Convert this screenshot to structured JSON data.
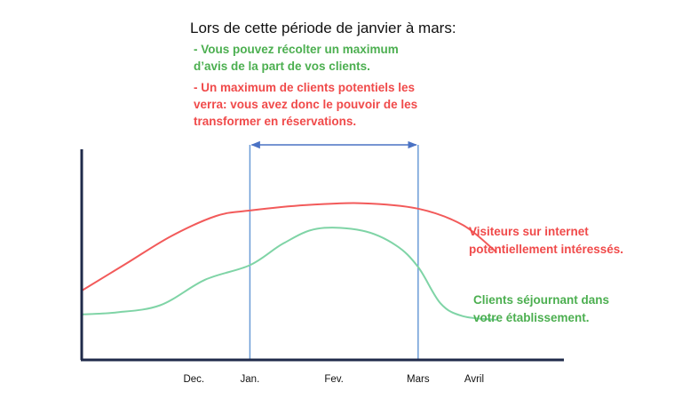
{
  "title": "Lors de cette période de janvier à mars:",
  "notes": {
    "green_lines": [
      "- Vous pouvez récolter un maximum",
      "d’avis de la part de vos clients."
    ],
    "red_lines": [
      "- Un maximum de clients potentiels les",
      "verra: vous avez donc le pouvoir de les",
      "transformer en réservations."
    ]
  },
  "colors": {
    "visitors": "#f25a5a",
    "clients": "#7fd4a6",
    "period": "#6b9bd6",
    "axis": "#1f2a4a"
  },
  "chart_data": {
    "type": "line",
    "categories": [
      "Dec.",
      "Jan.",
      "Fev.",
      "Mars",
      "Avril"
    ],
    "x": [
      0.5,
      1,
      1.75,
      2.5,
      3
    ],
    "xlim": [
      -0.5,
      3.8
    ],
    "ylim": [
      0,
      100
    ],
    "highlight_period": {
      "from": 1,
      "to": 2.5
    },
    "series": [
      {
        "name": "Visiteurs sur internet potentiellement intéressés.",
        "label_lines": [
          "Visiteurs sur internet",
          "potentiellement intéressés."
        ],
        "x": [
          -0.5,
          -0.1,
          0.3,
          0.7,
          1.0,
          1.5,
          2.0,
          2.5,
          2.9,
          3.2
        ],
        "values": [
          38,
          53,
          68,
          79,
          82,
          85,
          86,
          83,
          74,
          59
        ]
      },
      {
        "name": "Clients séjournant dans votre établissement.",
        "label_lines": [
          "Clients séjournant dans",
          "votre établissement."
        ],
        "x": [
          -0.5,
          -0.2,
          0.2,
          0.6,
          1.0,
          1.3,
          1.6,
          2.0,
          2.3,
          2.5,
          2.7,
          2.9,
          3.2
        ],
        "values": [
          25,
          26,
          30,
          44,
          52,
          64,
          72,
          71,
          63,
          51,
          31,
          24,
          22
        ]
      }
    ]
  }
}
